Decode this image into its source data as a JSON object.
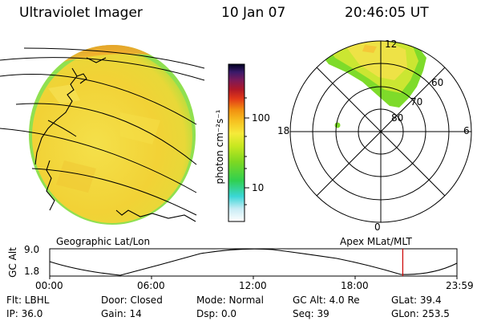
{
  "header": {
    "instrument": "Ultraviolet Imager",
    "date": "10 Jan 07",
    "time": "20:46:05 UT"
  },
  "colorbar": {
    "unit_label": "photon cm⁻²s⁻¹",
    "ticks": [
      "100",
      "10"
    ]
  },
  "polar_plot": {
    "mlt_labels": [
      "12",
      "18",
      "6",
      "0"
    ],
    "lat_labels": [
      "60",
      "70",
      "80"
    ]
  },
  "maps": {
    "left_title": "Geographic Lat/Lon",
    "right_title": "Apex MLat/MLT"
  },
  "altitude_plot": {
    "ylabel": "GC Alt",
    "yticks": [
      "9.0",
      "1.8"
    ],
    "xticks": [
      "00:00",
      "06:00",
      "12:00",
      "18:00",
      "23:59"
    ],
    "current_time_fraction": 0.867,
    "marker_color": "#cc0000"
  },
  "info": {
    "filter": "Flt: LBHL",
    "door": "Door: Closed",
    "mode": "Mode: Normal",
    "gc_alt": "GC Alt: 4.0 Re",
    "glat": "GLat:  39.4",
    "ip": "IP: 36.0",
    "gain": "Gain: 14",
    "dsp": "Dsp:     0.0",
    "seq": "Seq: 39",
    "glon": "GLon: 253.5"
  }
}
